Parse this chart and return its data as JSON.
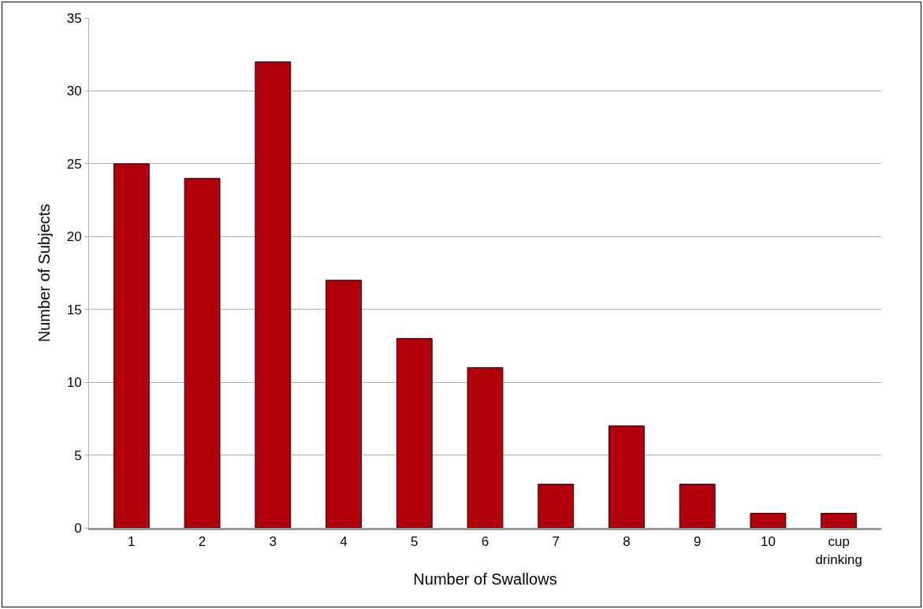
{
  "chart_data": {
    "type": "bar",
    "xlabel": "Number of Swallows",
    "ylabel": "Number of Subjects",
    "categories": [
      "1",
      "2",
      "3",
      "4",
      "5",
      "6",
      "7",
      "8",
      "9",
      "10",
      "cup drinking"
    ],
    "values": [
      25,
      24,
      32,
      17,
      13,
      11,
      3,
      7,
      3,
      1,
      1
    ],
    "color": "#b0000c",
    "ylim": [
      0,
      35
    ],
    "yticks": [
      0,
      5,
      10,
      15,
      20,
      25,
      30,
      35
    ],
    "grid": "y",
    "legend": false
  }
}
